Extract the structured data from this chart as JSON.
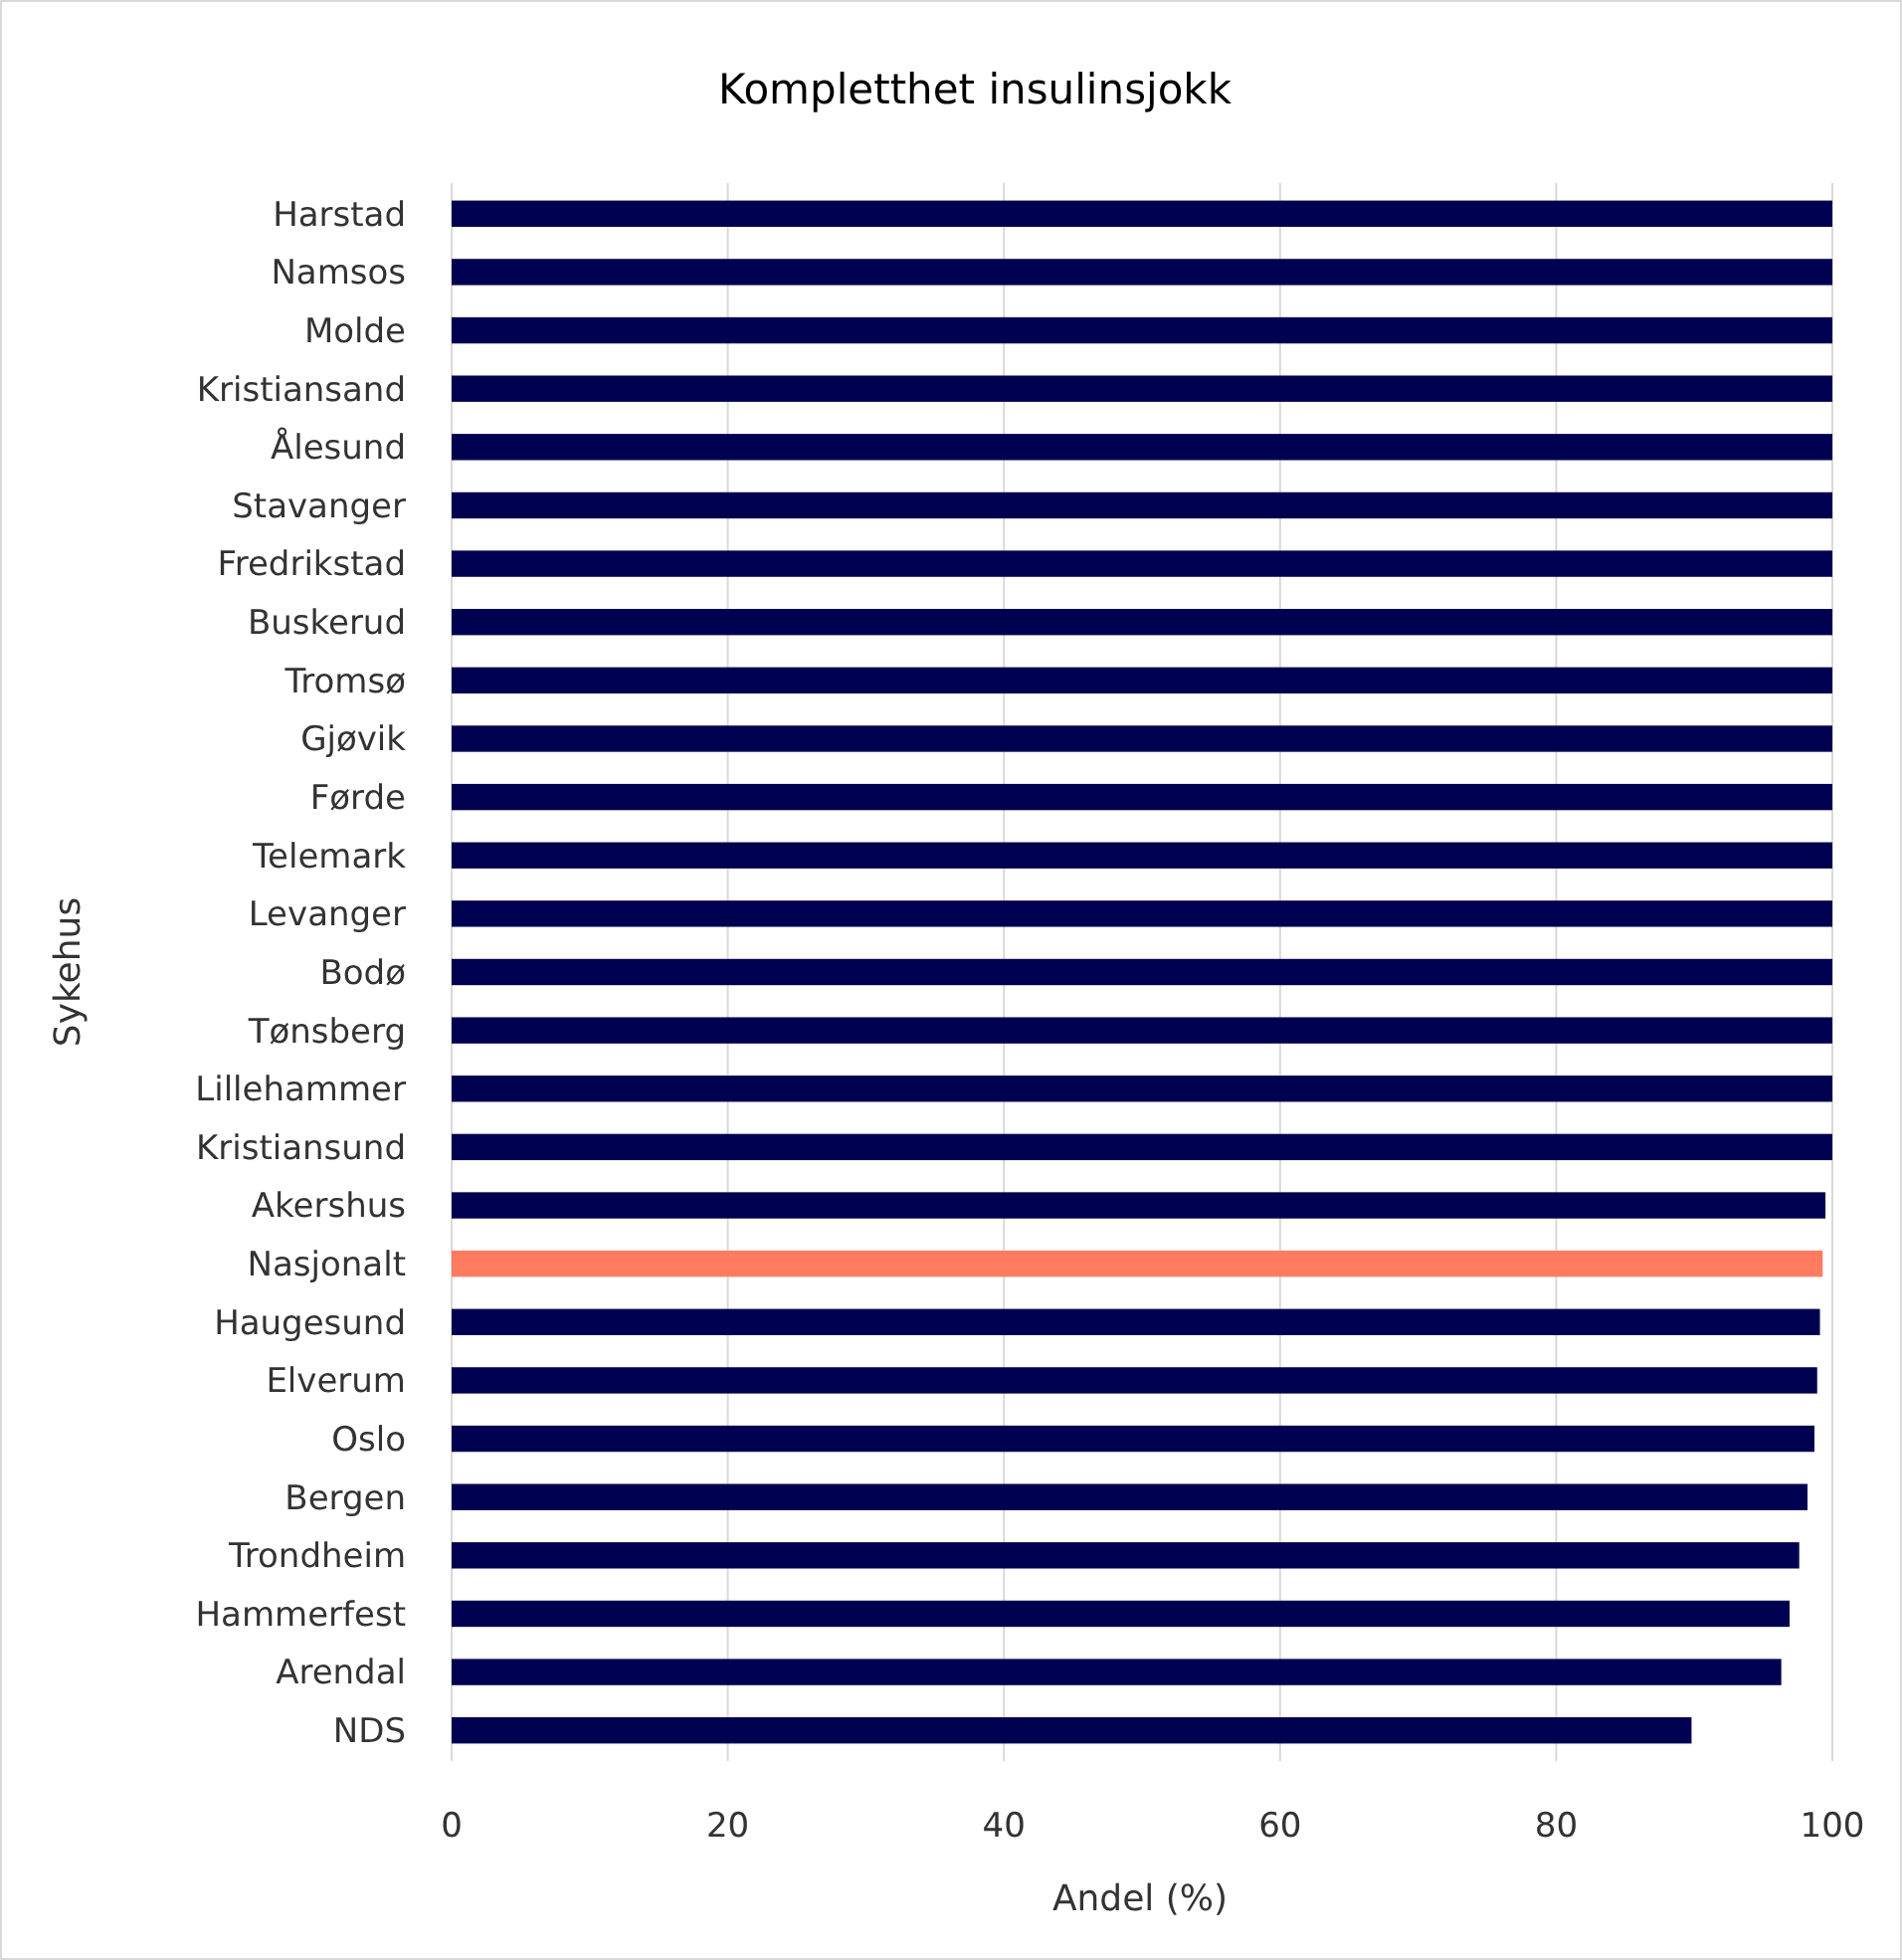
{
  "chart_data": {
    "type": "bar",
    "orientation": "horizontal",
    "title": "Kompletthet insulinsjokk",
    "xlabel": "Andel (%)",
    "ylabel": "Sykehus",
    "categories": [
      "Harstad",
      "Namsos",
      "Molde",
      "Kristiansand",
      "Ålesund",
      "Stavanger",
      "Fredrikstad",
      "Buskerud",
      "Tromsø",
      "Gjøvik",
      "Førde",
      "Telemark",
      "Levanger",
      "Bodø",
      "Tønsberg",
      "Lillehammer",
      "Kristiansund",
      "Akershus",
      "Nasjonalt",
      "Haugesund",
      "Elverum",
      "Oslo",
      "Bergen",
      "Trondheim",
      "Hammerfest",
      "Arendal",
      "NDS"
    ],
    "values": [
      100,
      100,
      100,
      100,
      100,
      100,
      100,
      100,
      100,
      100,
      100,
      100,
      100,
      100,
      100,
      100,
      100,
      99.5,
      99.3,
      99.1,
      98.9,
      98.7,
      98.2,
      97.6,
      96.9,
      96.3,
      89.8
    ],
    "colors": [
      "#000050",
      "#000050",
      "#000050",
      "#000050",
      "#000050",
      "#000050",
      "#000050",
      "#000050",
      "#000050",
      "#000050",
      "#000050",
      "#000050",
      "#000050",
      "#000050",
      "#000050",
      "#000050",
      "#000050",
      "#000050",
      "#ff7b5f",
      "#000050",
      "#000050",
      "#000050",
      "#000050",
      "#000050",
      "#000050",
      "#000050",
      "#000050"
    ],
    "xlim": [
      0,
      100
    ],
    "xticks": [
      0,
      20,
      40,
      60,
      80,
      100
    ],
    "grid": "x"
  }
}
